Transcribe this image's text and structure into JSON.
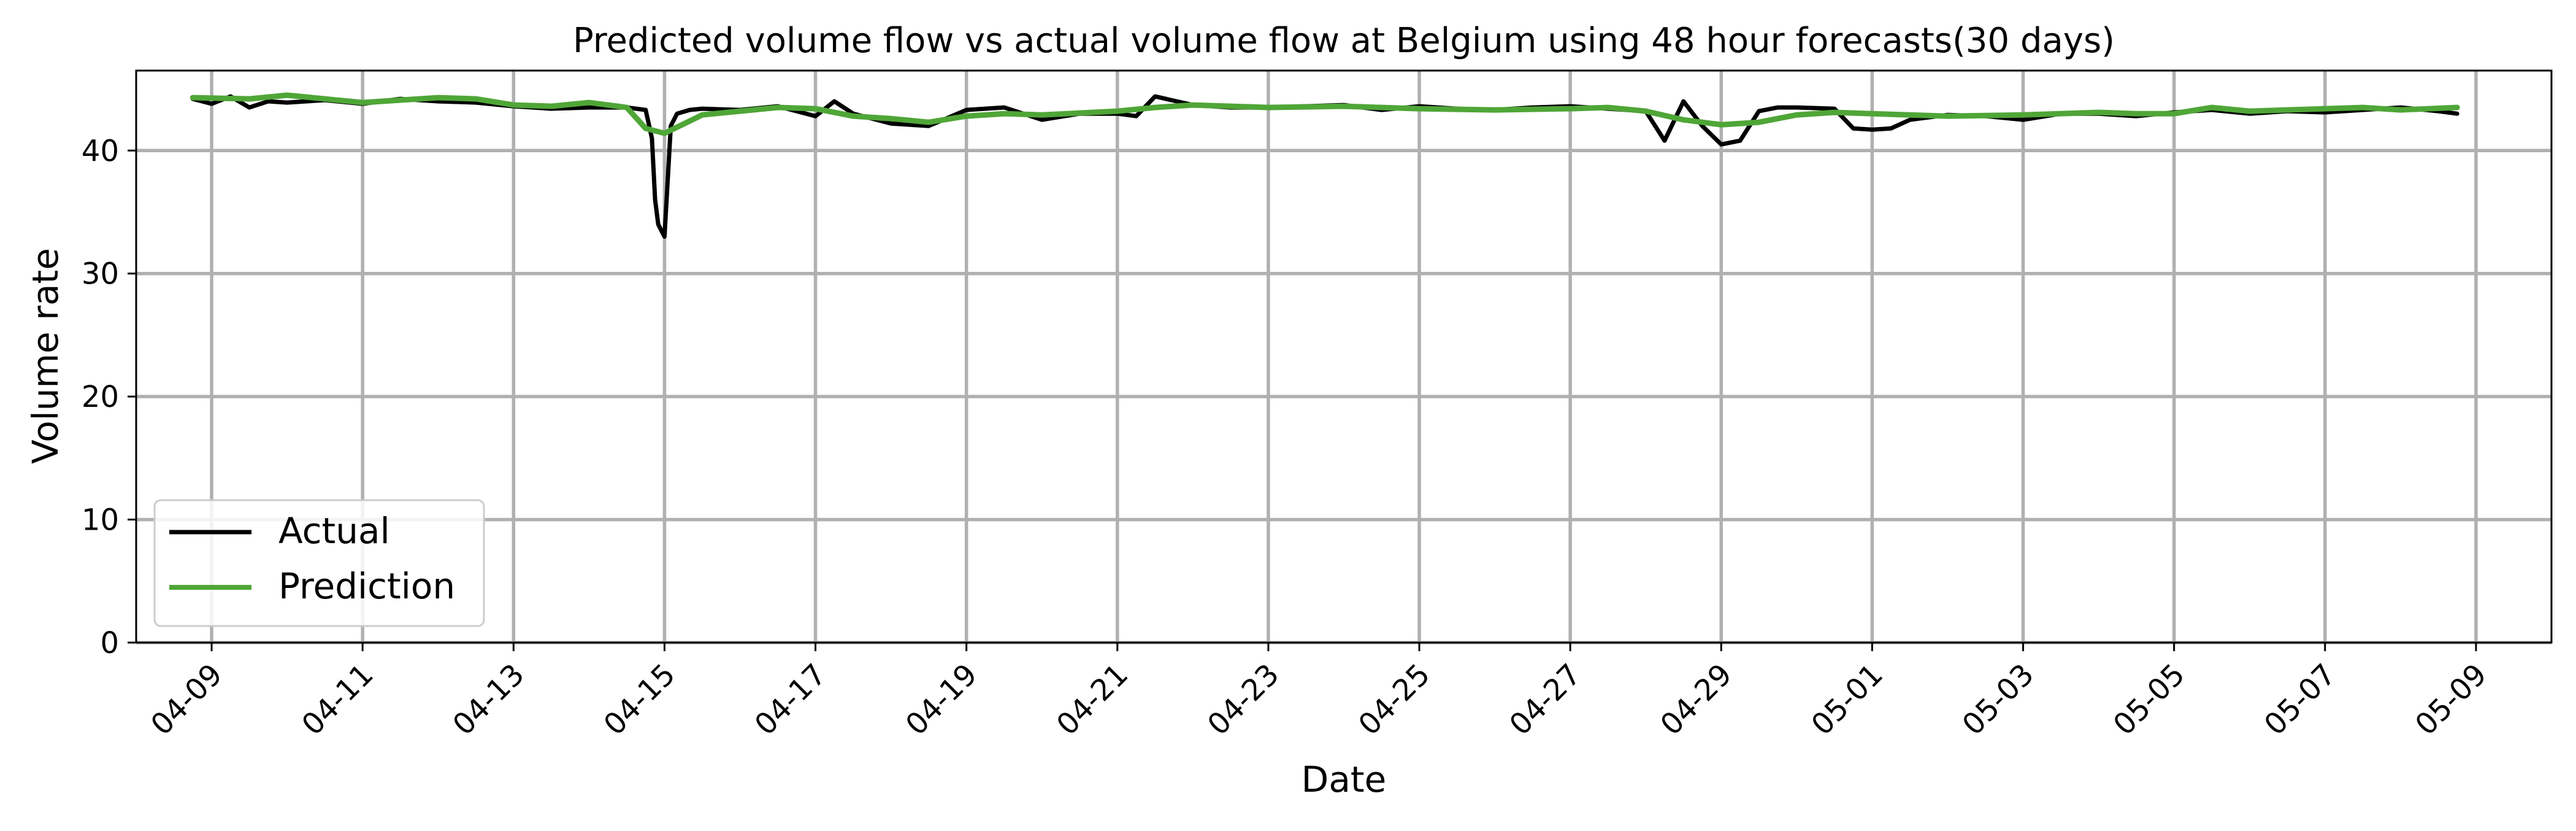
{
  "chart_data": {
    "type": "line",
    "title": "Predicted volume flow vs actual volume flow at Belgium using 48 hour forecasts(30 days)",
    "xlabel": "Date",
    "ylabel": "Volume rate",
    "xlim": [
      "2024-04-08 00:00",
      "2024-05-10 00:00"
    ],
    "ylim": [
      0,
      46.5
    ],
    "x_tick_labels": [
      "04-09",
      "04-11",
      "04-13",
      "04-15",
      "04-17",
      "04-19",
      "04-21",
      "04-23",
      "04-25",
      "04-27",
      "04-29",
      "05-01",
      "05-03",
      "05-05",
      "05-07",
      "05-09"
    ],
    "y_ticks": [
      0,
      10,
      20,
      30,
      40
    ],
    "grid": true,
    "legend_position": "lower-left",
    "colors": {
      "Actual": "#000000",
      "Prediction": "#4fa637",
      "grid_major": "#b0b0b0",
      "grid_minor": "#bdbdbd"
    },
    "series": [
      {
        "name": "Actual",
        "x": [
          "2024-04-08 18:00",
          "2024-04-09 00:00",
          "2024-04-09 06:00",
          "2024-04-09 12:00",
          "2024-04-09 18:00",
          "2024-04-10 00:00",
          "2024-04-10 12:00",
          "2024-04-11 00:00",
          "2024-04-11 12:00",
          "2024-04-12 00:00",
          "2024-04-12 12:00",
          "2024-04-13 00:00",
          "2024-04-13 12:00",
          "2024-04-14 00:00",
          "2024-04-14 12:00",
          "2024-04-14 18:00",
          "2024-04-14 20:00",
          "2024-04-14 21:00",
          "2024-04-14 22:00",
          "2024-04-15 00:00",
          "2024-04-15 02:00",
          "2024-04-15 04:00",
          "2024-04-15 08:00",
          "2024-04-15 12:00",
          "2024-04-16 00:00",
          "2024-04-16 12:00",
          "2024-04-17 00:00",
          "2024-04-17 06:00",
          "2024-04-17 12:00",
          "2024-04-18 00:00",
          "2024-04-18 12:00",
          "2024-04-19 00:00",
          "2024-04-19 12:00",
          "2024-04-20 00:00",
          "2024-04-20 12:00",
          "2024-04-21 00:00",
          "2024-04-21 06:00",
          "2024-04-21 12:00",
          "2024-04-22 00:00",
          "2024-04-22 12:00",
          "2024-04-23 00:00",
          "2024-04-23 12:00",
          "2024-04-24 00:00",
          "2024-04-24 12:00",
          "2024-04-25 00:00",
          "2024-04-25 12:00",
          "2024-04-26 00:00",
          "2024-04-26 12:00",
          "2024-04-27 00:00",
          "2024-04-27 12:00",
          "2024-04-28 00:00",
          "2024-04-28 06:00",
          "2024-04-28 12:00",
          "2024-04-28 18:00",
          "2024-04-29 00:00",
          "2024-04-29 06:00",
          "2024-04-29 12:00",
          "2024-04-29 18:00",
          "2024-04-30 00:00",
          "2024-04-30 12:00",
          "2024-04-30 18:00",
          "2024-05-01 00:00",
          "2024-05-01 06:00",
          "2024-05-01 12:00",
          "2024-05-02 00:00",
          "2024-05-02 12:00",
          "2024-05-03 00:00",
          "2024-05-03 12:00",
          "2024-05-04 00:00",
          "2024-05-04 12:00",
          "2024-05-05 00:00",
          "2024-05-05 12:00",
          "2024-05-06 00:00",
          "2024-05-06 12:00",
          "2024-05-07 00:00",
          "2024-05-07 12:00",
          "2024-05-08 00:00",
          "2024-05-08 12:00",
          "2024-05-08 18:00"
        ],
        "y": [
          44.2,
          43.8,
          44.4,
          43.5,
          44.0,
          43.9,
          44.1,
          43.8,
          44.2,
          44.0,
          43.9,
          43.6,
          43.4,
          43.5,
          43.5,
          43.3,
          41.0,
          36.0,
          34.0,
          33.0,
          42.0,
          43.0,
          43.3,
          43.4,
          43.3,
          43.6,
          42.8,
          44.0,
          43.0,
          42.2,
          42.0,
          43.3,
          43.5,
          42.5,
          43.0,
          43.0,
          42.8,
          44.4,
          43.7,
          43.5,
          43.5,
          43.6,
          43.7,
          43.3,
          43.6,
          43.4,
          43.3,
          43.5,
          43.6,
          43.4,
          43.2,
          40.8,
          44.0,
          42.0,
          40.5,
          40.8,
          43.2,
          43.5,
          43.5,
          43.4,
          41.8,
          41.7,
          41.8,
          42.5,
          42.9,
          42.8,
          42.5,
          43.0,
          43.0,
          42.8,
          43.1,
          43.3,
          43.0,
          43.2,
          43.1,
          43.3,
          43.5,
          43.2,
          43.0
        ]
      },
      {
        "name": "Prediction",
        "x": [
          "2024-04-08 18:00",
          "2024-04-09 12:00",
          "2024-04-10 00:00",
          "2024-04-10 12:00",
          "2024-04-11 00:00",
          "2024-04-11 12:00",
          "2024-04-12 00:00",
          "2024-04-12 12:00",
          "2024-04-13 00:00",
          "2024-04-13 12:00",
          "2024-04-14 00:00",
          "2024-04-14 12:00",
          "2024-04-14 18:00",
          "2024-04-15 00:00",
          "2024-04-15 12:00",
          "2024-04-16 00:00",
          "2024-04-16 12:00",
          "2024-04-17 00:00",
          "2024-04-17 12:00",
          "2024-04-18 00:00",
          "2024-04-18 12:00",
          "2024-04-19 00:00",
          "2024-04-19 12:00",
          "2024-04-20 00:00",
          "2024-04-21 00:00",
          "2024-04-21 12:00",
          "2024-04-22 00:00",
          "2024-04-23 00:00",
          "2024-04-24 00:00",
          "2024-04-25 00:00",
          "2024-04-26 00:00",
          "2024-04-27 00:00",
          "2024-04-27 12:00",
          "2024-04-28 00:00",
          "2024-04-28 12:00",
          "2024-04-29 00:00",
          "2024-04-29 12:00",
          "2024-04-30 00:00",
          "2024-04-30 12:00",
          "2024-05-01 00:00",
          "2024-05-02 00:00",
          "2024-05-03 00:00",
          "2024-05-04 00:00",
          "2024-05-04 12:00",
          "2024-05-05 00:00",
          "2024-05-05 12:00",
          "2024-05-06 00:00",
          "2024-05-07 00:00",
          "2024-05-07 12:00",
          "2024-05-08 00:00",
          "2024-05-08 18:00"
        ],
        "y": [
          44.3,
          44.2,
          44.5,
          44.2,
          43.9,
          44.1,
          44.3,
          44.2,
          43.7,
          43.6,
          43.9,
          43.5,
          41.8,
          41.4,
          42.9,
          43.2,
          43.5,
          43.4,
          42.8,
          42.6,
          42.3,
          42.8,
          43.0,
          42.9,
          43.2,
          43.5,
          43.7,
          43.5,
          43.6,
          43.4,
          43.3,
          43.4,
          43.5,
          43.2,
          42.5,
          42.1,
          42.3,
          42.9,
          43.1,
          43.0,
          42.8,
          42.9,
          43.1,
          43.0,
          43.0,
          43.5,
          43.2,
          43.4,
          43.5,
          43.3,
          43.5
        ]
      }
    ]
  }
}
